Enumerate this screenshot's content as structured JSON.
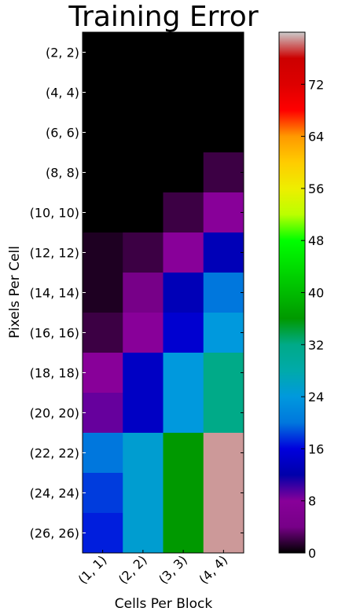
{
  "chart_data": {
    "type": "heatmap",
    "title": "Training Error",
    "xlabel": "Cells Per Block",
    "ylabel": "Pixels Per Cell",
    "x_categories": [
      "(1, 1)",
      "(2, 2)",
      "(3, 3)",
      "(4, 4)"
    ],
    "y_categories": [
      "(2, 2)",
      "(4, 4)",
      "(6, 6)",
      "(8, 8)",
      "(10, 10)",
      "(12, 12)",
      "(14, 14)",
      "(16, 16)",
      "(18, 18)",
      "(20, 20)",
      "(22, 22)",
      "(24, 24)",
      "(26, 26)"
    ],
    "values": [
      [
        0,
        0,
        0,
        0
      ],
      [
        0,
        0,
        0,
        0
      ],
      [
        0,
        0,
        0,
        0
      ],
      [
        0,
        0,
        0,
        2
      ],
      [
        0,
        0,
        2,
        8
      ],
      [
        1,
        2,
        8,
        13
      ],
      [
        1,
        4,
        13,
        20
      ],
      [
        2,
        8,
        15,
        24
      ],
      [
        8,
        14,
        24,
        32
      ],
      [
        9,
        14,
        24,
        32
      ],
      [
        20,
        25,
        36,
        79
      ],
      [
        18,
        25,
        36,
        79
      ],
      [
        17,
        25,
        36,
        79
      ]
    ],
    "colorbar": {
      "min": 0,
      "max": 80,
      "ticks": [
        0,
        8,
        16,
        24,
        32,
        40,
        48,
        56,
        64,
        72
      ],
      "colormap": "nipy_spectral"
    }
  }
}
